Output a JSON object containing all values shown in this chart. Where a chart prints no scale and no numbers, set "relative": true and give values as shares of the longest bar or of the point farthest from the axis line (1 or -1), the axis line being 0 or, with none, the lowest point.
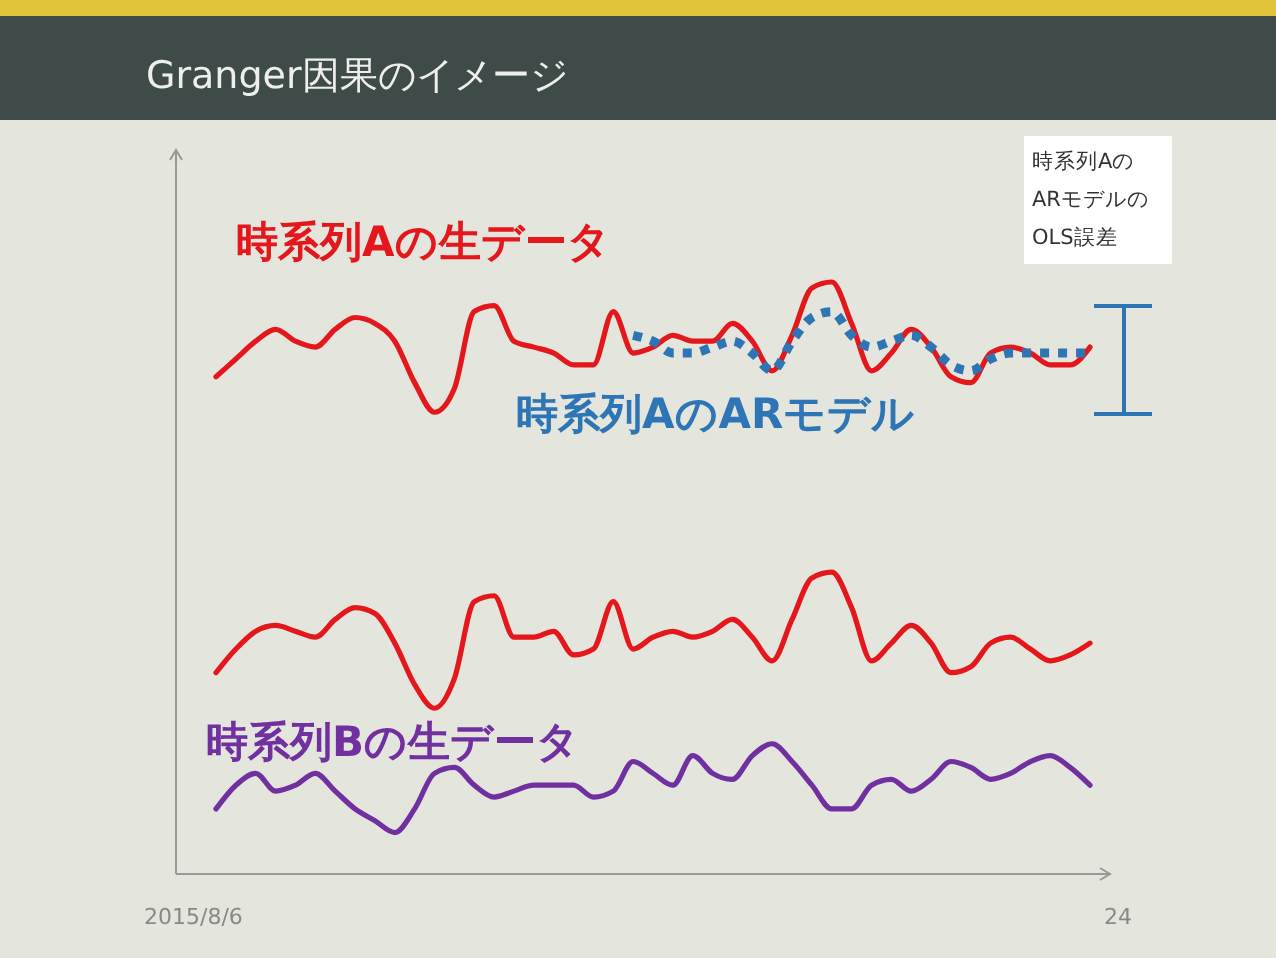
{
  "chart_data": {
    "type": "line",
    "title": "Granger因果のイメージ",
    "relative": true,
    "legend": false,
    "categories": [
      null,
      null,
      null,
      null,
      null,
      null,
      null,
      null,
      null,
      null,
      null,
      null,
      null,
      null,
      null,
      null,
      null,
      null,
      null,
      null,
      null,
      null,
      null,
      null,
      null,
      null,
      null,
      null,
      null,
      null,
      null,
      null,
      null,
      null,
      null,
      null,
      null,
      null,
      null,
      null,
      null,
      null,
      null,
      null,
      null
    ],
    "series": [
      {
        "name": "時系列Aの生データ",
        "color": "#e3171c",
        "line_style": "solid",
        "values": [
          0.84,
          0.87,
          0.9,
          0.92,
          0.9,
          0.89,
          0.92,
          0.94,
          0.93,
          0.9,
          0.83,
          0.78,
          0.82,
          0.95,
          0.96,
          0.9,
          0.89,
          0.88,
          0.86,
          0.86,
          0.95,
          0.88,
          0.89,
          0.91,
          0.9,
          0.9,
          0.93,
          0.9,
          0.85,
          0.91,
          0.99,
          1,
          0.93,
          0.85,
          0.88,
          0.92,
          0.89,
          0.84,
          0.83,
          0.88,
          0.89,
          0.88,
          0.86,
          0.86,
          0.89
        ]
      },
      {
        "name": "時系列AのARモデル",
        "color": "#2e75b6",
        "line_style": "dotted",
        "values": [
          null,
          null,
          null,
          null,
          null,
          null,
          null,
          null,
          null,
          null,
          null,
          null,
          null,
          null,
          null,
          null,
          null,
          null,
          null,
          null,
          null,
          0.91,
          0.9,
          0.88,
          0.88,
          0.89,
          0.9,
          0.88,
          0.85,
          0.9,
          0.94,
          0.95,
          0.91,
          0.89,
          0.9,
          0.91,
          0.89,
          0.86,
          0.85,
          0.87,
          0.88,
          0.88,
          0.88,
          0.88,
          0.88
        ]
      },
      {
        "color": "#e3171c",
        "line_style": "solid",
        "values": [
          0.34,
          0.38,
          0.41,
          0.42,
          0.41,
          0.4,
          0.43,
          0.45,
          0.44,
          0.39,
          0.32,
          0.28,
          0.33,
          0.46,
          0.47,
          0.4,
          0.4,
          0.41,
          0.37,
          0.38,
          0.46,
          0.38,
          0.4,
          0.41,
          0.4,
          0.41,
          0.43,
          0.4,
          0.36,
          0.43,
          0.5,
          0.51,
          0.45,
          0.36,
          0.39,
          0.42,
          0.39,
          0.34,
          0.35,
          0.39,
          0.4,
          0.38,
          0.36,
          0.37,
          0.39
        ]
      },
      {
        "name": "時系列Bの生データ",
        "color": "#7030a0",
        "line_style": "solid",
        "values": [
          0.11,
          0.15,
          0.17,
          0.14,
          0.15,
          0.17,
          0.14,
          0.11,
          0.09,
          0.07,
          0.11,
          0.17,
          0.18,
          0.15,
          0.13,
          0.14,
          0.15,
          0.15,
          0.15,
          0.13,
          0.14,
          0.19,
          0.17,
          0.15,
          0.2,
          0.17,
          0.16,
          0.2,
          0.22,
          0.19,
          0.15,
          0.11,
          0.11,
          0.15,
          0.16,
          0.14,
          0.16,
          0.19,
          0.18,
          0.16,
          0.17,
          0.19,
          0.2,
          0.18,
          0.15
        ]
      }
    ],
    "annotations": [
      "時系列Aの\nARモデルの\nOLS誤差",
      "2015/8/6",
      "24"
    ]
  }
}
